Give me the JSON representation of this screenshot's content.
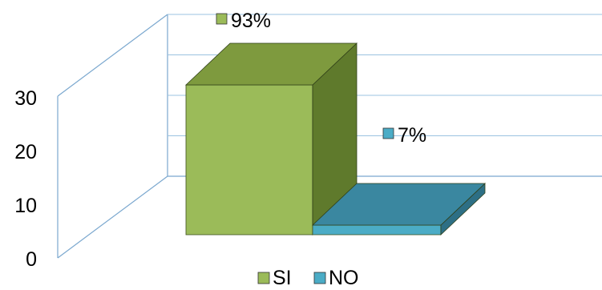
{
  "chart_data": {
    "type": "bar",
    "style": "3d-column",
    "categories": [
      "SI",
      "NO"
    ],
    "values": [
      93,
      7
    ],
    "data_labels": [
      "93%",
      "7%"
    ],
    "y_ticks": [
      0,
      10,
      20,
      30
    ],
    "ylim": [
      0,
      40
    ],
    "grid": true,
    "legend": {
      "position": "bottom",
      "entries": [
        "SI",
        "NO"
      ]
    },
    "colors": {
      "si_front": "#9bbb59",
      "si_side": "#5f7a2c",
      "si_top": "#7e9a3e",
      "no_front": "#4bacc6",
      "no_side": "#2d6f85",
      "no_top": "#3a87a0",
      "grid": "#9bc3e0",
      "wall": "#7ba8cf"
    }
  }
}
